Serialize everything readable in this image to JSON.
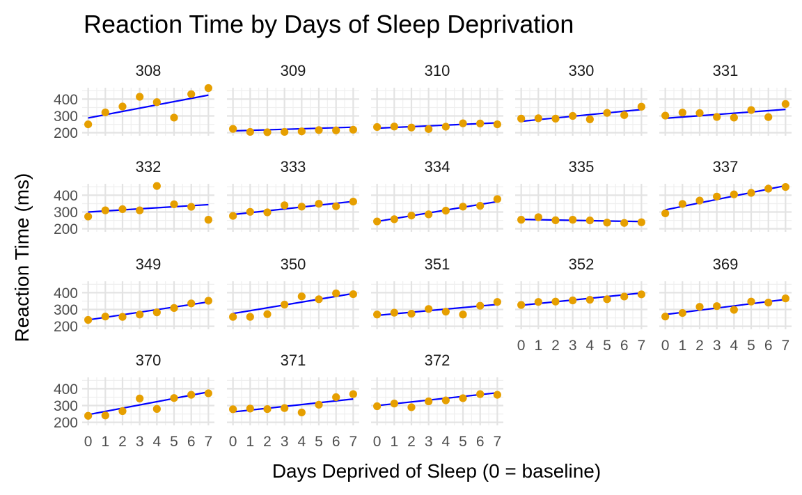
{
  "chart_data": {
    "type": "scatter",
    "title": "Reaction Time by Days of Sleep Deprivation",
    "xlabel": "Days Deprived of Sleep (0 = baseline)",
    "ylabel": "Reaction Time (ms)",
    "x": [
      0,
      1,
      2,
      3,
      4,
      5,
      6,
      7
    ],
    "x_ticks": [
      "0",
      "1",
      "2",
      "3",
      "4",
      "5",
      "6",
      "7"
    ],
    "y_ticks": [
      200,
      300,
      400
    ],
    "xlim": [
      -0.35,
      7.35
    ],
    "ylim": [
      182,
      468
    ],
    "facet_columns": 5,
    "grid": true,
    "legend": "none",
    "colors": {
      "point": "#E69F00",
      "fit_line": "#0000FF"
    },
    "series": [
      {
        "name": "308",
        "values": [
          250,
          321,
          356,
          414,
          382,
          290,
          430,
          466
        ],
        "fit": [
          288,
          424
        ]
      },
      {
        "name": "309",
        "values": [
          223,
          205,
          203,
          205,
          208,
          216,
          214,
          218
        ],
        "fit": [
          211,
          233
        ]
      },
      {
        "name": "310",
        "values": [
          234,
          237,
          231,
          222,
          236,
          256,
          255,
          250
        ],
        "fit": [
          227,
          259
        ]
      },
      {
        "name": "330",
        "values": [
          284,
          286,
          284,
          300,
          280,
          318,
          305,
          355
        ],
        "fit": [
          268,
          338
        ]
      },
      {
        "name": "331",
        "values": [
          302,
          320,
          317,
          294,
          290,
          335,
          293,
          371
        ],
        "fit": [
          286,
          339
        ]
      },
      {
        "name": "332",
        "values": [
          273,
          310,
          317,
          310,
          455,
          346,
          331,
          254
        ],
        "fit": [
          300,
          344
        ]
      },
      {
        "name": "333",
        "values": [
          277,
          301,
          298,
          340,
          332,
          349,
          334,
          362
        ],
        "fit": [
          285,
          363
        ]
      },
      {
        "name": "334",
        "values": [
          244,
          257,
          279,
          286,
          308,
          332,
          337,
          377
        ],
        "fit": [
          244,
          362
        ]
      },
      {
        "name": "335",
        "values": [
          254,
          269,
          251,
          254,
          250,
          237,
          235,
          239
        ],
        "fit": [
          256,
          243
        ]
      },
      {
        "name": "337",
        "values": [
          292,
          348,
          368,
          392,
          405,
          414,
          439,
          449
        ],
        "fit": [
          313,
          457
        ]
      },
      {
        "name": "349",
        "values": [
          238,
          258,
          256,
          270,
          283,
          309,
          336,
          352
        ],
        "fit": [
          238,
          345
        ]
      },
      {
        "name": "350",
        "values": [
          256,
          256,
          272,
          329,
          378,
          361,
          396,
          391
        ],
        "fit": [
          276,
          395
        ]
      },
      {
        "name": "351",
        "values": [
          270,
          281,
          275,
          303,
          287,
          270,
          322,
          345
        ],
        "fit": [
          265,
          330
        ]
      },
      {
        "name": "352",
        "values": [
          327,
          345,
          347,
          354,
          358,
          361,
          377,
          390
        ],
        "fit": [
          325,
          398
        ]
      },
      {
        "name": "369",
        "values": [
          258,
          279,
          316,
          320,
          298,
          347,
          341,
          366
        ],
        "fit": [
          270,
          360
        ]
      },
      {
        "name": "370",
        "values": [
          239,
          241,
          267,
          342,
          280,
          345,
          364,
          373
        ],
        "fit": [
          246,
          381
        ]
      },
      {
        "name": "371",
        "values": [
          278,
          282,
          279,
          285,
          259,
          305,
          350,
          368
        ],
        "fit": [
          262,
          339
        ]
      },
      {
        "name": "372",
        "values": [
          296,
          312,
          290,
          325,
          331,
          344,
          368,
          364
        ],
        "fit": [
          300,
          376
        ]
      }
    ]
  }
}
